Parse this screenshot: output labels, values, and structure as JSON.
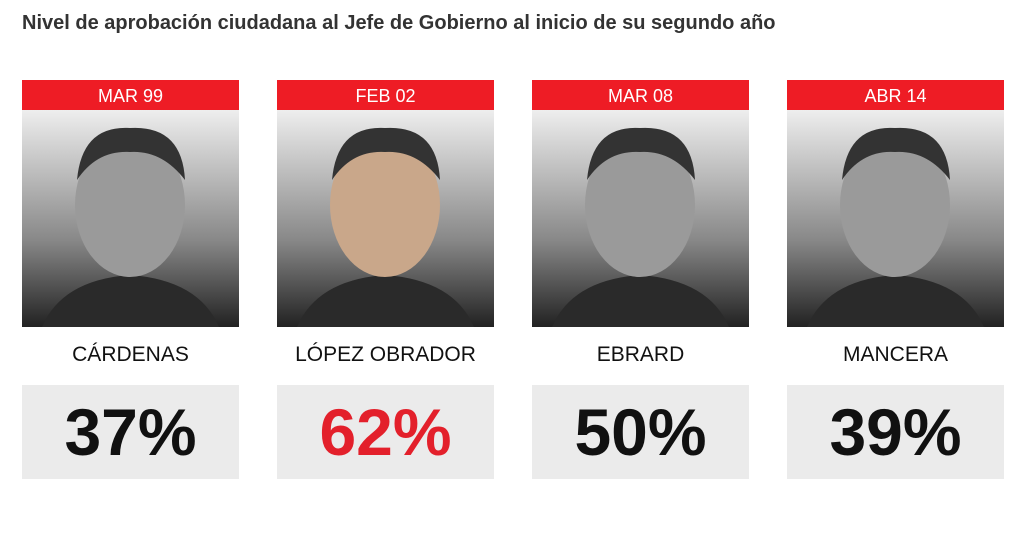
{
  "title": "Nivel de aprobación ciudadana al Jefe de Gobierno al inicio de su segundo año",
  "panels": [
    {
      "date": "MAR 99",
      "name": "CÁRDENAS",
      "value": "37%",
      "color": "#111111"
    },
    {
      "date": "FEB 02",
      "name": "LÓPEZ OBRADOR",
      "value": "62%",
      "color": "#e3202b"
    },
    {
      "date": "MAR 08",
      "name": "EBRARD",
      "value": "50%",
      "color": "#111111"
    },
    {
      "date": "ABR 14",
      "name": "MANCERA",
      "value": "39%",
      "color": "#111111"
    }
  ]
}
